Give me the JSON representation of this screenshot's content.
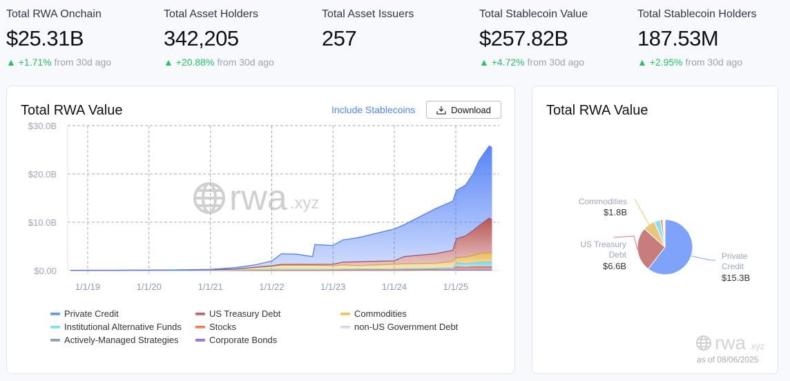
{
  "stats": [
    {
      "label": "Total RWA Onchain",
      "value": "$25.31B",
      "change": "+1.71%",
      "suffix": "from 30d ago"
    },
    {
      "label": "Total Asset Holders",
      "value": "342,205",
      "change": "+20.88%",
      "suffix": "from 30d ago"
    },
    {
      "label": "Total Asset Issuers",
      "value": "257"
    },
    {
      "label": "Total Stablecoin Value",
      "value": "$257.82B",
      "change": "+4.72%",
      "suffix": "from 30d ago"
    },
    {
      "label": "Total Stablecoin Holders",
      "value": "187.53M",
      "change": "+2.95%",
      "suffix": "from 30d ago"
    }
  ],
  "up_arrow": "▲",
  "area_card": {
    "title": "Total RWA Value",
    "include_stablecoins": "Include Stablecoins",
    "download": "Download",
    "download_icon": "download-tray-icon"
  },
  "pie_card": {
    "title": "Total RWA Value",
    "as_of": "as of 08/06/2025"
  },
  "watermark": {
    "main": "rwa",
    "ext": ".xyz"
  },
  "chart_data": [
    {
      "type": "area",
      "stacked": true,
      "title": "Total RWA Value",
      "ylim": [
        0,
        30
      ],
      "yticks": [
        "$0.00",
        "$10.0B",
        "$20.0B",
        "$30.0B"
      ],
      "ytick_values": [
        0,
        10,
        20,
        30
      ],
      "xticks": [
        "1/1/19",
        "1/1/20",
        "1/1/21",
        "1/1/22",
        "1/1/23",
        "1/1/24",
        "1/1/25"
      ],
      "xtick_dates": [
        "2019-01-01",
        "2020-01-01",
        "2021-01-01",
        "2022-01-01",
        "2023-01-01",
        "2024-01-01",
        "2025-01-01"
      ],
      "xlim": [
        "2018-09-20",
        "2025-08-06"
      ],
      "grid": true,
      "legend_position": "bottom",
      "unit": "$B",
      "dates": [
        "2018-09-20",
        "2019-06-01",
        "2020-06-01",
        "2021-01-01",
        "2021-06-01",
        "2021-10-01",
        "2022-01-01",
        "2022-03-01",
        "2022-06-01",
        "2022-09-01",
        "2022-09-15",
        "2022-12-31",
        "2023-03-01",
        "2023-06-01",
        "2024-01-01",
        "2024-03-01",
        "2024-09-01",
        "2024-12-15",
        "2025-01-05",
        "2025-03-01",
        "2025-04-15",
        "2025-05-20",
        "2025-07-20",
        "2025-08-05"
      ],
      "series": [
        {
          "name": "Corporate Bonds",
          "color": "#8e4fe8",
          "values": [
            0.01,
            0.01,
            0.01,
            0.01,
            0.02,
            0.02,
            0.03,
            0.03,
            0.03,
            0.03,
            0.03,
            0.05,
            0.05,
            0.05,
            0.05,
            0.05,
            0.08,
            0.1,
            0.1,
            0.1,
            0.1,
            0.1,
            0.1,
            0.1
          ]
        },
        {
          "name": "Actively-Managed Strategies",
          "color": "#6f8fae",
          "values": [
            0,
            0,
            0,
            0,
            0,
            0,
            0,
            0,
            0,
            0,
            0,
            0,
            0,
            0.02,
            0.02,
            0.05,
            0.05,
            0.05,
            0.1,
            0.1,
            0.1,
            0.1,
            0.1,
            0.1
          ]
        },
        {
          "name": "non-US Government Debt",
          "color": "#c9d3e6",
          "values": [
            0,
            0,
            0,
            0,
            0,
            0,
            0,
            0,
            0,
            0,
            0,
            0,
            0.05,
            0.05,
            0.05,
            0.05,
            0.08,
            0.1,
            0.1,
            0.1,
            0.1,
            0.1,
            0.1,
            0.1
          ]
        },
        {
          "name": "Stocks",
          "color": "#f0643c",
          "values": [
            0,
            0,
            0,
            0,
            0,
            0,
            0,
            0,
            0,
            0,
            0,
            0,
            0,
            0,
            0,
            0,
            0.03,
            0.05,
            0.5,
            0.4,
            0.5,
            0.5,
            0.5,
            0.5
          ]
        },
        {
          "name": "Institutional Alternative Funds",
          "color": "#6fd6f0",
          "values": [
            0,
            0.01,
            0.02,
            0.03,
            0.08,
            0.2,
            0.25,
            0.25,
            0.25,
            0.25,
            0.25,
            0.2,
            0.2,
            0.2,
            0.2,
            0.25,
            0.25,
            0.3,
            0.8,
            0.7,
            0.8,
            0.9,
            1.0,
            1.0
          ]
        },
        {
          "name": "Commodities",
          "color": "#e8b84a",
          "values": [
            0.01,
            0.02,
            0.05,
            0.1,
            0.2,
            0.4,
            0.6,
            0.8,
            0.8,
            0.8,
            0.8,
            0.75,
            0.85,
            0.7,
            1.0,
            1.0,
            1.0,
            1.3,
            1.0,
            1.4,
            1.5,
            1.8,
            1.9,
            1.8
          ]
        },
        {
          "name": "US Treasury Debt",
          "color": "#b54b4b",
          "values": [
            0,
            0,
            0,
            0.02,
            0.02,
            0.1,
            0.1,
            0.2,
            0.2,
            0.2,
            0.2,
            0.3,
            0.6,
            0.8,
            0.7,
            1.5,
            2.0,
            2.3,
            4.0,
            4.4,
            5.2,
            5.8,
            7.2,
            6.8
          ]
        },
        {
          "name": "Private Credit",
          "color": "#4f7ef5",
          "values": [
            0.03,
            0.03,
            0.05,
            0.08,
            0.3,
            0.5,
            1.0,
            2.2,
            2.1,
            1.6,
            4.1,
            3.9,
            4.6,
            5.0,
            6.6,
            6.6,
            9.3,
            10.2,
            10.0,
            10.5,
            11.8,
            13.5,
            14.9,
            15.0
          ]
        }
      ],
      "legend_order": [
        "Private Credit",
        "US Treasury Debt",
        "Commodities",
        "Institutional Alternative Funds",
        "Stocks",
        "non-US Government Debt",
        "Actively-Managed Strategies",
        "Corporate Bonds"
      ]
    },
    {
      "type": "pie",
      "title": "Total RWA Value",
      "slices": [
        {
          "name": "Private Credit",
          "value": 15.3,
          "label": "$15.3B",
          "color": "#7fa3fb"
        },
        {
          "name": "US Treasury Debt",
          "value": 6.6,
          "label": "$6.6B",
          "color": "#c87c7c"
        },
        {
          "name": "Commodities",
          "value": 1.8,
          "label": "$1.8B",
          "color": "#e8c77a"
        },
        {
          "name": "Institutional Alternative Funds",
          "value": 0.9,
          "color": "#8fe0f4"
        },
        {
          "name": "Stocks",
          "value": 0.35,
          "color": "#f08a68"
        },
        {
          "name": "non-US Government Debt",
          "value": 0.15,
          "color": "#d5dcea"
        },
        {
          "name": "Actively-Managed Strategies",
          "value": 0.1,
          "color": "#8aa3bd"
        },
        {
          "name": "Corporate Bonds",
          "value": 0.1,
          "color": "#a77af0"
        }
      ]
    }
  ]
}
